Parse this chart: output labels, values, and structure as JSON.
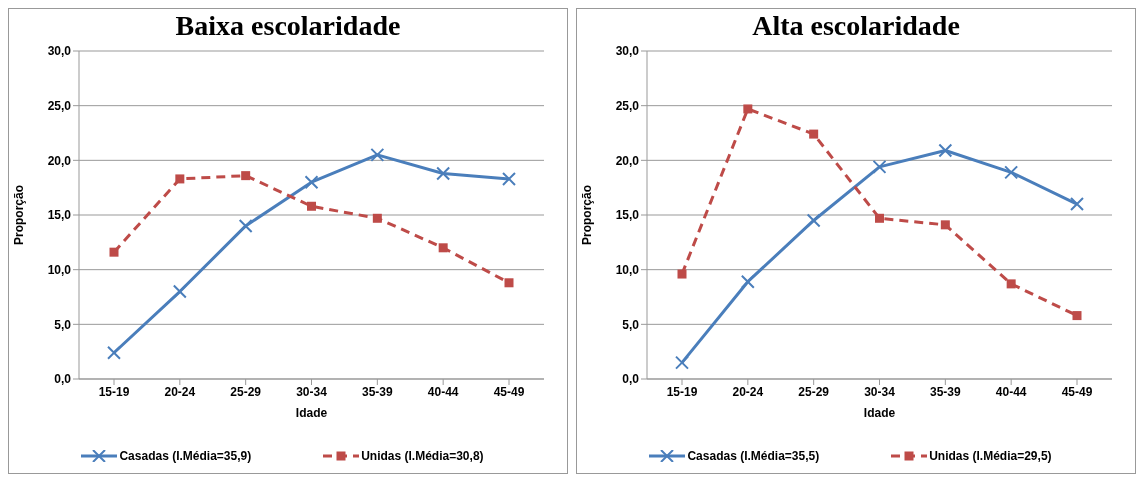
{
  "chart_data": [
    {
      "type": "line",
      "title": "Baixa escolaridade",
      "xlabel": "Idade",
      "ylabel": "Proporção",
      "categories": [
        "15-19",
        "20-24",
        "25-29",
        "30-34",
        "35-39",
        "40-44",
        "45-49"
      ],
      "series": [
        {
          "name": "Casadas  (I.Média=35,9)",
          "color": "#4a7ebb",
          "marker": "cross",
          "line_style": "solid",
          "values": [
            2.4,
            8.0,
            14.0,
            18.0,
            20.5,
            18.8,
            18.3
          ]
        },
        {
          "name": "Unidas  (I.Média=30,8)",
          "color": "#be4b48",
          "marker": "square",
          "line_style": "dashed",
          "values": [
            11.6,
            18.3,
            18.6,
            15.8,
            14.7,
            12.0,
            8.8
          ]
        }
      ],
      "ylim": [
        0,
        30
      ],
      "yticks": [
        {
          "value": 0,
          "label": "0,0"
        },
        {
          "value": 5,
          "label": "5,0"
        },
        {
          "value": 10,
          "label": "10,0"
        },
        {
          "value": 15,
          "label": "15,0"
        },
        {
          "value": 20,
          "label": "20,0"
        },
        {
          "value": 25,
          "label": "25,0"
        },
        {
          "value": 30,
          "label": "30,0"
        }
      ],
      "grid": "y",
      "legend": "bottom"
    },
    {
      "type": "line",
      "title": "Alta escolaridade",
      "xlabel": "Idade",
      "ylabel": "Proporção",
      "categories": [
        "15-19",
        "20-24",
        "25-29",
        "30-34",
        "35-39",
        "40-44",
        "45-49"
      ],
      "series": [
        {
          "name": "Casadas  (I.Média=35,5)",
          "color": "#4a7ebb",
          "marker": "cross",
          "line_style": "solid",
          "values": [
            1.5,
            8.9,
            14.5,
            19.4,
            20.9,
            18.9,
            16.0
          ]
        },
        {
          "name": "Unidas  (I.Média=29,5)",
          "color": "#be4b48",
          "marker": "square",
          "line_style": "dashed",
          "values": [
            9.6,
            24.7,
            22.4,
            14.7,
            14.1,
            8.7,
            5.8
          ]
        }
      ],
      "ylim": [
        0,
        30
      ],
      "yticks": [
        {
          "value": 0,
          "label": "0,0"
        },
        {
          "value": 5,
          "label": "5,0"
        },
        {
          "value": 10,
          "label": "10,0"
        },
        {
          "value": 15,
          "label": "15,0"
        },
        {
          "value": 20,
          "label": "20,0"
        },
        {
          "value": 25,
          "label": "25,0"
        },
        {
          "value": 30,
          "label": "30,0"
        }
      ],
      "grid": "y",
      "legend": "bottom"
    }
  ]
}
